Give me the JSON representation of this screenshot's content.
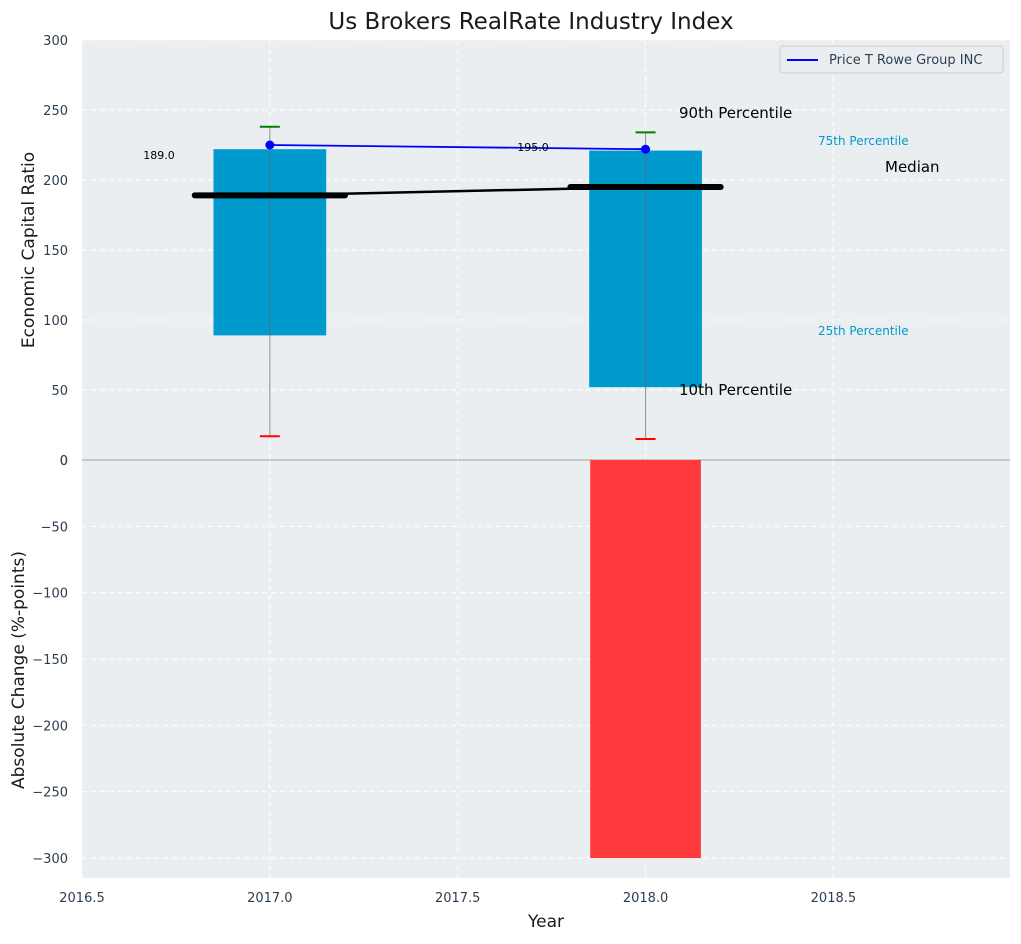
{
  "chart_data": {
    "type": "bar",
    "title": "Us Brokers RealRate Industry Index",
    "xlabel": "Year",
    "x_ticks": [
      "2016.5",
      "2017.0",
      "2017.5",
      "2018.0",
      "2018.5"
    ],
    "x_tick_values": [
      2016.5,
      2017.0,
      2017.5,
      2018.0,
      2018.5
    ],
    "xlim": [
      2016.5,
      2018.97
    ],
    "grid": true,
    "legend_placement": "top-right",
    "colors": {
      "background": "#eaeef0",
      "box": "#009bcc",
      "company_line": "#0000ff",
      "median": "#000000",
      "whisker_top": "#008000",
      "whisker_bottom": "#ff0000",
      "negative_change": "#ff3a3d",
      "axis_text": "#2c3e50"
    },
    "top_panel": {
      "ylabel": "Economic Capital Ratio",
      "ylim": [
        0,
        300
      ],
      "y_ticks": [
        "0",
        "50",
        "100",
        "150",
        "200",
        "250",
        "300"
      ],
      "y_tick_values": [
        0,
        50,
        100,
        150,
        200,
        250,
        300
      ],
      "years": [
        2017.0,
        2018.0
      ],
      "p10": [
        17,
        15
      ],
      "p25": [
        89,
        52
      ],
      "median": [
        189,
        195
      ],
      "p75": [
        222,
        221
      ],
      "p90": [
        238,
        234
      ],
      "median_labels": [
        "189.0",
        "195.0"
      ],
      "company": {
        "name": "Price T Rowe Group INC",
        "values": [
          225,
          222
        ]
      },
      "annotations": {
        "p90": "90th Percentile",
        "p75": "75th Percentile",
        "median": "Median",
        "p25": "25th Percentile",
        "p10": "10th Percentile"
      }
    },
    "bottom_panel": {
      "ylabel": "Absolute Change (%-points)",
      "ylim": [
        -315,
        0
      ],
      "y_ticks": [
        "0",
        "−50",
        "−100",
        "−150",
        "−200",
        "−250",
        "−300"
      ],
      "y_tick_values": [
        0,
        -50,
        -100,
        -150,
        -200,
        -250,
        -300
      ],
      "years": [
        2018.0
      ],
      "values": [
        -300
      ]
    }
  }
}
